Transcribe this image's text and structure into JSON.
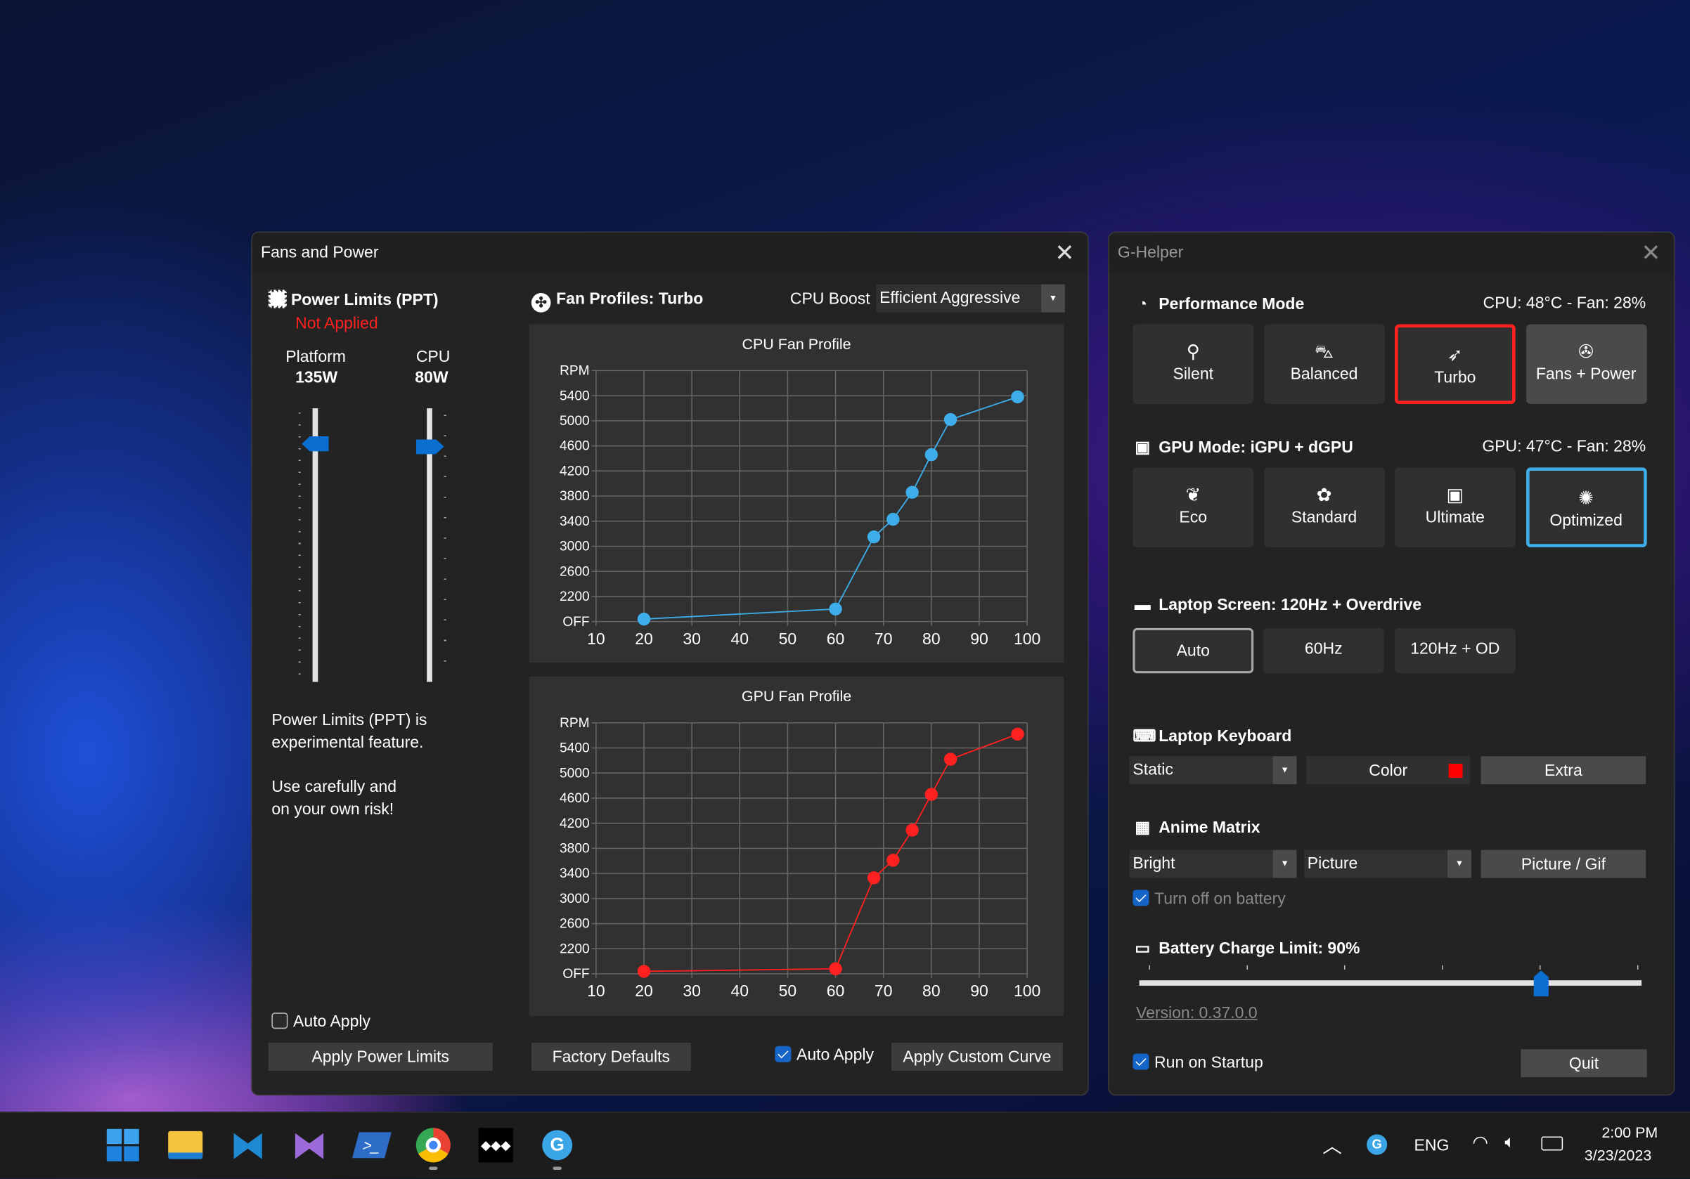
{
  "fans_window": {
    "title": "Fans and Power",
    "power": {
      "title": "Power Limits (PPT)",
      "status": "Not Applied",
      "sliders": [
        {
          "label": "Platform",
          "value": "135W",
          "level": 0.87
        },
        {
          "label": "CPU",
          "value": "80W",
          "level": 0.86
        }
      ],
      "note1": "Power Limits (PPT) is experimental feature.",
      "note2": "Use carefully and on your own risk!",
      "auto_apply": "Auto Apply",
      "auto_apply_checked": false,
      "apply_button": "Apply Power Limits"
    },
    "fans": {
      "title": "Fan Profiles: Turbo",
      "cpu_boost_label": "CPU Boost",
      "cpu_boost_value": "Efficient Aggressive",
      "factory_defaults": "Factory Defaults",
      "auto_apply": "Auto Apply",
      "auto_apply_checked": true,
      "apply_curve": "Apply Custom Curve"
    }
  },
  "chart_data": [
    {
      "type": "line",
      "title": "CPU Fan Profile",
      "color": "#3daee9",
      "grid": true,
      "x": [
        20,
        60,
        68,
        72,
        76,
        80,
        84,
        98
      ],
      "y": [
        1840,
        2000,
        3150,
        3430,
        3860,
        4460,
        5020,
        5380
      ],
      "xlim": [
        10,
        100
      ],
      "ylim": [
        1800,
        5800
      ],
      "xticks": [
        "10",
        "20",
        "30",
        "40",
        "50",
        "60",
        "70",
        "80",
        "90",
        "100"
      ],
      "yticks": [
        "OFF",
        "2200",
        "2600",
        "3000",
        "3400",
        "3800",
        "4200",
        "4600",
        "5000",
        "5400",
        "RPM"
      ]
    },
    {
      "type": "line",
      "title": "GPU Fan Profile",
      "color": "#ff2020",
      "grid": true,
      "x": [
        20,
        60,
        68,
        72,
        76,
        80,
        84,
        98
      ],
      "y": [
        1840,
        1880,
        3330,
        3610,
        4090,
        4660,
        5220,
        5620
      ],
      "xlim": [
        10,
        100
      ],
      "ylim": [
        1800,
        5800
      ],
      "xticks": [
        "10",
        "20",
        "30",
        "40",
        "50",
        "60",
        "70",
        "80",
        "90",
        "100"
      ],
      "yticks": [
        "OFF",
        "2200",
        "2600",
        "3000",
        "3400",
        "3800",
        "4200",
        "4600",
        "5000",
        "5400",
        "RPM"
      ]
    }
  ],
  "ghelper": {
    "title": "G-Helper",
    "perf": {
      "title": "Performance Mode",
      "status": "CPU: 48°C -  Fan: 28%",
      "modes": [
        {
          "label": "Silent",
          "icon": "bicycle-icon"
        },
        {
          "label": "Balanced",
          "icon": "car-icon"
        },
        {
          "label": "Turbo",
          "icon": "rocket-icon",
          "selected": true
        },
        {
          "label": "Fans + Power",
          "icon": "fan-icon"
        }
      ],
      "accent": "#ff2020"
    },
    "gpu": {
      "title": "GPU Mode: iGPU + dGPU",
      "status": "GPU: 47°C -  Fan: 28%",
      "modes": [
        {
          "label": "Eco",
          "icon": "leaf-icon"
        },
        {
          "label": "Standard",
          "icon": "flower-icon"
        },
        {
          "label": "Ultimate",
          "icon": "gamepad-icon"
        },
        {
          "label": "Optimized",
          "icon": "lightbulb-gear-icon",
          "selected": true
        }
      ],
      "accent": "#3daee9"
    },
    "screen": {
      "title": "Laptop Screen: 120Hz + Overdrive",
      "options": [
        "Auto",
        "60Hz",
        "120Hz + OD"
      ],
      "selected": "Auto"
    },
    "keyboard": {
      "title": "Laptop Keyboard",
      "mode": "Static",
      "color_label": "Color",
      "color": "#ff0000",
      "extra": "Extra"
    },
    "matrix": {
      "title": "Anime Matrix",
      "brightness": "Bright",
      "mode": "Picture",
      "picture_button": "Picture / Gif",
      "turn_off_battery": "Turn off on battery",
      "turn_off_checked": true
    },
    "battery": {
      "title": "Battery Charge Limit: 90%",
      "limit": 90
    },
    "version": "Version: 0.37.0.0",
    "run_on_startup": "Run on Startup",
    "run_on_startup_checked": true,
    "quit": "Quit"
  },
  "taskbar": {
    "apps": [
      "windows-start-icon",
      "file-explorer-icon",
      "vscode-icon",
      "visual-studio-icon",
      "powershell-icon",
      "chrome-icon",
      "tidal-icon",
      "g-helper-icon"
    ],
    "tray": {
      "language": "ENG",
      "time": "2:00 PM",
      "date": "3/23/2023"
    }
  }
}
